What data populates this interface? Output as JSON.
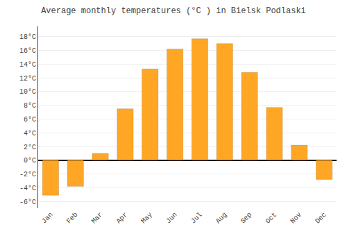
{
  "chart_data": {
    "type": "bar",
    "title": "Average monthly temperatures (°C ) in Bielsk Podlaski",
    "categories": [
      "Jan",
      "Feb",
      "Mar",
      "Apr",
      "May",
      "Jun",
      "Jul",
      "Aug",
      "Sep",
      "Oct",
      "Nov",
      "Dec"
    ],
    "values": [
      -5.1,
      -3.8,
      1.0,
      7.5,
      13.3,
      16.2,
      17.7,
      17.0,
      12.8,
      7.7,
      2.2,
      -2.8
    ],
    "color": "#FFA724",
    "ylim": [
      -7,
      19.5
    ],
    "yticks": [
      {
        "value": -6,
        "label": "-6°C"
      },
      {
        "value": -4,
        "label": "-4°C"
      },
      {
        "value": -2,
        "label": "-2°C"
      },
      {
        "value": 0,
        "label": "0°C"
      },
      {
        "value": 2,
        "label": "2°C"
      },
      {
        "value": 4,
        "label": "4°C"
      },
      {
        "value": 6,
        "label": "6°C"
      },
      {
        "value": 8,
        "label": "8°C"
      },
      {
        "value": 10,
        "label": "10°C"
      },
      {
        "value": 12,
        "label": "12°C"
      },
      {
        "value": 14,
        "label": "14°C"
      },
      {
        "value": 16,
        "label": "16°C"
      },
      {
        "value": 18,
        "label": "18°C"
      }
    ],
    "grid": true
  }
}
